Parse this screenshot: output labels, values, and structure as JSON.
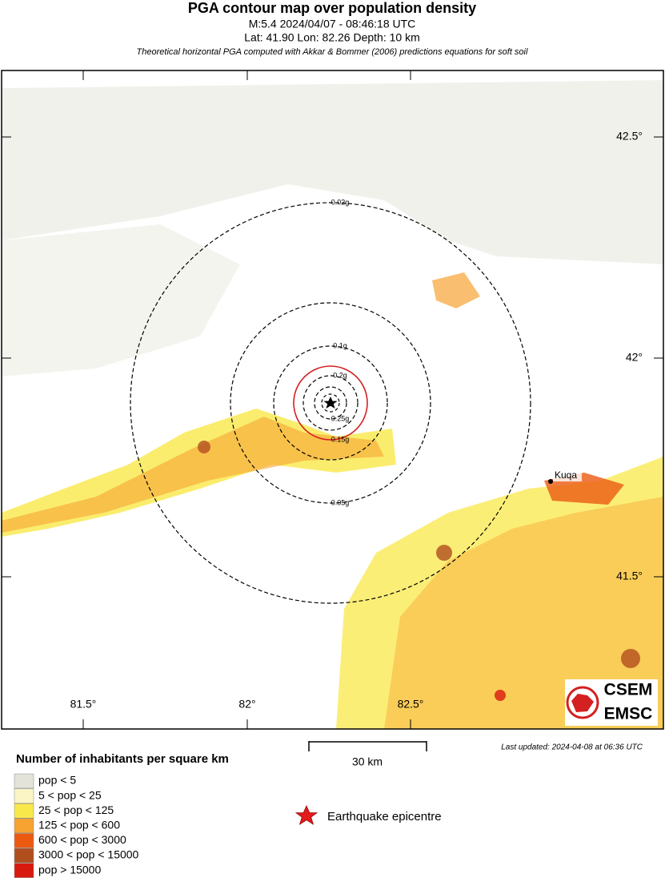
{
  "header": {
    "title": "PGA contour map over population density",
    "event": "M:5.4 2024/04/07 - 08:46:18 UTC",
    "location": "Lat: 41.90 Lon: 82.26 Depth: 10 km",
    "note": "Theoretical horizontal PGA computed with Akkar & Bommer (2006) predictions equations for soft soil"
  },
  "map": {
    "lat_labels": [
      "42.5°",
      "42°",
      "41.5°"
    ],
    "lon_labels": [
      "81.5°",
      "82°",
      "82.5°"
    ],
    "contours": [
      "0.02g",
      "0.05g",
      "0.1g",
      "0.2g",
      "0.15g",
      "0.25g"
    ],
    "city": "Kuqa",
    "logo": [
      "CSEM",
      "EMSC"
    ]
  },
  "scale": "30 km",
  "updated": "Last updated: 2024-04-08 at 06:36 UTC",
  "legend": {
    "title": "Number of inhabitants per square km",
    "items": [
      {
        "label": "pop < 5",
        "color": "#e3e3da"
      },
      {
        "label": "5 < pop < 25",
        "color": "#fbf5c6"
      },
      {
        "label": "25 < pop < 125",
        "color": "#f9e84a"
      },
      {
        "label": "125 < pop < 600",
        "color": "#f6a332"
      },
      {
        "label": "600 < pop < 3000",
        "color": "#ec5a12"
      },
      {
        "label": "3000 < pop < 15000",
        "color": "#b14e1e"
      },
      {
        "label": "pop > 15000",
        "color": "#d81a0e"
      }
    ],
    "epicentre": "Earthquake epicentre"
  }
}
